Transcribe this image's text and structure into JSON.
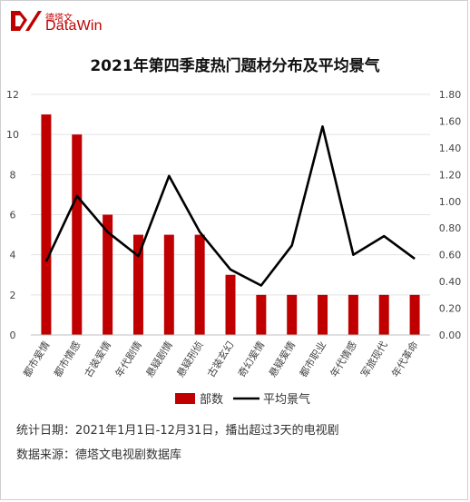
{
  "logo": {
    "cn": "德塔文",
    "en": "DataWin",
    "color": "#c00000"
  },
  "title": "2021年第四季度热门题材分布及平均景气",
  "footnotes": {
    "line1": "统计日期：2021年1月1日-12月31日，播出超过3天的电视剧",
    "line2": "数据来源：德塔文电视剧数据库"
  },
  "chart_data": {
    "type": "bar",
    "title": "2021年第四季度热门题材分布及平均景气",
    "categories": [
      "都市爱情",
      "都市情感",
      "古装爱情",
      "年代剧情",
      "悬疑剧情",
      "悬疑刑侦",
      "古装玄幻",
      "奇幻爱情",
      "悬疑爱情",
      "都市职业",
      "年代情感",
      "军旅现代",
      "年代革命"
    ],
    "series": [
      {
        "name": "部数",
        "type": "bar",
        "axis": "left",
        "color": "#c00000",
        "values": [
          11,
          10,
          6,
          5,
          5,
          5,
          3,
          2,
          2,
          2,
          2,
          2,
          2
        ]
      },
      {
        "name": "平均景气",
        "type": "line",
        "axis": "right",
        "color": "#000000",
        "values": [
          0.55,
          1.04,
          0.77,
          0.59,
          1.19,
          0.77,
          0.49,
          0.37,
          0.67,
          1.56,
          0.6,
          0.74,
          0.57
        ]
      }
    ],
    "y_left": {
      "min": 0,
      "max": 12,
      "ticks": [
        "0",
        "2",
        "4",
        "6",
        "8",
        "10",
        "12"
      ]
    },
    "y_right": {
      "min": 0,
      "max": 1.8,
      "ticks": [
        "0.00",
        "0.20",
        "0.40",
        "0.60",
        "0.80",
        "1.00",
        "1.20",
        "1.40",
        "1.60",
        "1.80"
      ]
    },
    "grid": true,
    "legend_position": "bottom"
  }
}
